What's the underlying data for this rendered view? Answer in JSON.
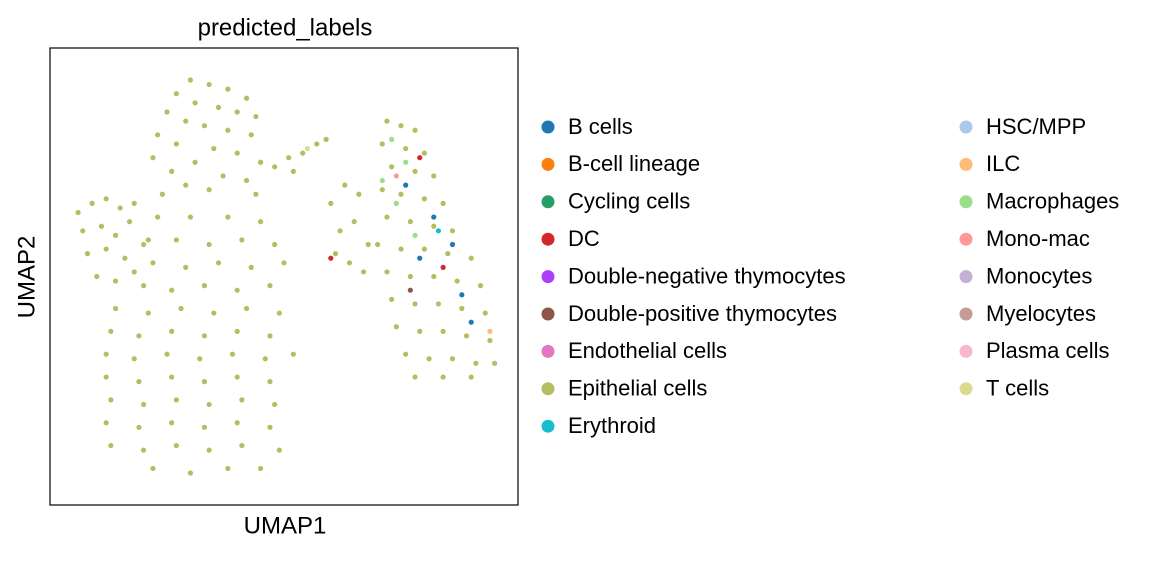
{
  "chart_data": {
    "type": "scatter",
    "title": "predicted_labels",
    "x_label": "UMAP1",
    "y_label": "UMAP2",
    "xlim": [
      0,
      100
    ],
    "ylim": [
      0,
      100
    ],
    "grid": false,
    "legend": "right",
    "series": [
      {
        "name": "B cells",
        "color": "#1f77b4",
        "x": [
          76,
          82,
          86,
          79,
          90,
          88
        ],
        "y": [
          70,
          63,
          57,
          54,
          40,
          46
        ]
      },
      {
        "name": "B-cell lineage",
        "color": "#ff7f0e",
        "x": [],
        "y": []
      },
      {
        "name": "Cycling cells",
        "color": "#279e68",
        "x": [],
        "y": []
      },
      {
        "name": "DC",
        "color": "#d62728",
        "x": [
          79,
          60,
          84
        ],
        "y": [
          76,
          54,
          52
        ]
      },
      {
        "name": "Double-negative thymocytes",
        "color": "#aa40fc",
        "x": [],
        "y": []
      },
      {
        "name": "Double-positive thymocytes",
        "color": "#8c564b",
        "x": [
          77
        ],
        "y": [
          47
        ]
      },
      {
        "name": "Endothelial cells",
        "color": "#e377c2",
        "x": [],
        "y": []
      },
      {
        "name": "Epithelial cells",
        "color": "#b5bd61",
        "x": [
          30,
          34,
          38,
          27,
          42,
          31,
          36,
          25,
          40,
          44,
          29,
          33,
          38,
          23,
          43,
          27,
          35,
          40,
          22,
          31,
          45,
          26,
          37,
          42,
          29,
          34,
          24,
          44,
          6,
          9,
          12,
          15,
          18,
          7,
          11,
          14,
          17,
          8,
          12,
          16,
          10,
          14,
          18,
          20,
          23,
          30,
          38,
          45,
          21,
          27,
          34,
          41,
          48,
          22,
          29,
          36,
          43,
          50,
          20,
          26,
          33,
          40,
          47,
          14,
          21,
          28,
          35,
          42,
          49,
          13,
          19,
          26,
          33,
          40,
          47,
          12,
          18,
          25,
          32,
          39,
          46,
          52,
          12,
          19,
          26,
          33,
          40,
          47,
          13,
          20,
          27,
          34,
          41,
          48,
          12,
          19,
          26,
          33,
          40,
          47,
          13,
          20,
          27,
          34,
          41,
          49,
          22,
          30,
          38,
          45,
          48,
          51,
          54,
          57,
          59,
          52,
          60,
          63,
          66,
          62,
          65,
          68,
          64,
          67,
          61,
          72,
          75,
          78,
          71,
          76,
          80,
          73,
          78,
          82,
          71,
          75,
          80,
          84,
          72,
          77,
          82,
          86,
          70,
          75,
          80,
          85,
          90,
          72,
          77,
          82,
          87,
          92,
          73,
          78,
          83,
          88,
          93,
          74,
          79,
          84,
          89,
          94,
          76,
          81,
          86,
          91,
          95,
          78,
          84,
          90
        ],
        "y": [
          93,
          92,
          91,
          90,
          89,
          88,
          87,
          86,
          86,
          85,
          84,
          83,
          82,
          81,
          81,
          79,
          78,
          77,
          76,
          75,
          75,
          73,
          72,
          71,
          70,
          69,
          68,
          68,
          64,
          66,
          67,
          65,
          66,
          60,
          61,
          59,
          62,
          55,
          56,
          54,
          50,
          49,
          51,
          57,
          63,
          63,
          63,
          62,
          58,
          58,
          57,
          58,
          57,
          53,
          52,
          53,
          52,
          53,
          48,
          47,
          48,
          47,
          48,
          43,
          42,
          43,
          42,
          43,
          42,
          38,
          37,
          38,
          37,
          38,
          37,
          33,
          32,
          33,
          32,
          33,
          32,
          33,
          28,
          27,
          28,
          27,
          28,
          27,
          23,
          22,
          23,
          22,
          23,
          22,
          18,
          17,
          18,
          17,
          18,
          17,
          13,
          12,
          13,
          12,
          13,
          12,
          8,
          7,
          8,
          8,
          74,
          76,
          77,
          79,
          80,
          73,
          66,
          70,
          68,
          60,
          62,
          57,
          53,
          51,
          55,
          84,
          83,
          82,
          79,
          78,
          77,
          74,
          73,
          72,
          69,
          68,
          67,
          66,
          63,
          62,
          61,
          60,
          57,
          56,
          56,
          55,
          54,
          51,
          50,
          50,
          49,
          48,
          45,
          44,
          44,
          43,
          42,
          39,
          38,
          38,
          37,
          36,
          33,
          32,
          32,
          31,
          31,
          28,
          28,
          28
        ]
      },
      {
        "name": "Erythroid",
        "color": "#17becf",
        "x": [
          83
        ],
        "y": [
          60
        ]
      },
      {
        "name": "HSC/MPP",
        "color": "#aec7e8",
        "x": [],
        "y": []
      },
      {
        "name": "ILC",
        "color": "#ffbb78",
        "x": [
          94
        ],
        "y": [
          38
        ]
      },
      {
        "name": "Macrophages",
        "color": "#98df8a",
        "x": [
          73,
          76,
          71,
          74,
          78
        ],
        "y": [
          80,
          75,
          71,
          66,
          59
        ]
      },
      {
        "name": "Mono-mac",
        "color": "#ff9896",
        "x": [
          74
        ],
        "y": [
          72
        ]
      },
      {
        "name": "Monocytes",
        "color": "#c5b0d5",
        "x": [],
        "y": []
      },
      {
        "name": "Myelocytes",
        "color": "#c49c94",
        "x": [],
        "y": []
      },
      {
        "name": "Plasma cells",
        "color": "#f7b6d2",
        "x": [],
        "y": []
      },
      {
        "name": "T cells",
        "color": "#dbdb8d",
        "x": [
          55
        ],
        "y": [
          78
        ]
      }
    ]
  }
}
